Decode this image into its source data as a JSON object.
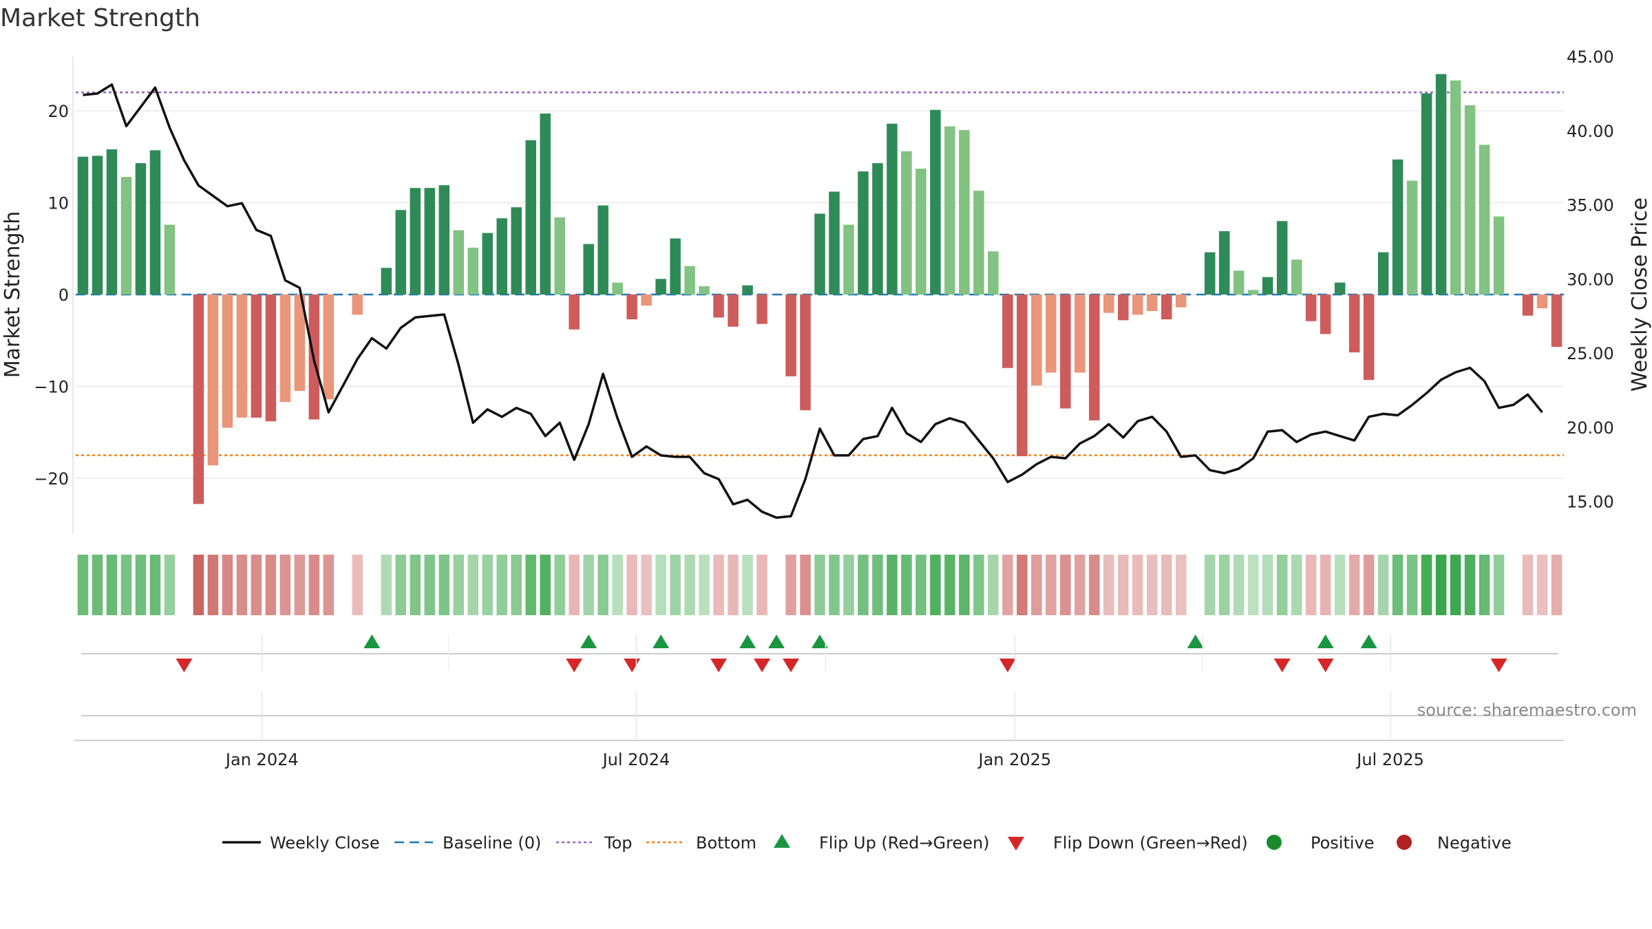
{
  "chart_data": {
    "type": "bar",
    "title": "Market Strength",
    "source": "source: sharemaestro.com",
    "y_left_label": "Market Strength",
    "y_right_label": "Weekly Close Price",
    "y_left_range": [
      -26,
      26
    ],
    "y_right_range": [
      12.5,
      45.5
    ],
    "y_left_ticks": [
      20,
      10,
      0,
      -10,
      -20
    ],
    "y_left_tick_labels": [
      "20",
      "10",
      "0",
      "−10",
      "−20"
    ],
    "y_right_ticks": [
      45,
      40,
      35,
      30,
      25,
      20,
      15
    ],
    "y_right_tick_labels": [
      "45.00",
      "40.00",
      "35.00",
      "30.00",
      "25.00",
      "20.00",
      "15.00"
    ],
    "x_ticks": [
      {
        "label": "Jan 2024",
        "index": 12.4
      },
      {
        "label": "Jul 2024",
        "index": 38.3
      },
      {
        "label": "Jan 2025",
        "index": 64.5
      },
      {
        "label": "Jul 2025",
        "index": 90.5
      }
    ],
    "reference_lines": {
      "top": 22,
      "bottom": -17.5,
      "baseline": 0
    },
    "strength": [
      15,
      15.1,
      15.8,
      12.8,
      14.3,
      15.7,
      7.6,
      0,
      -22.8,
      -18.6,
      -14.5,
      -13.4,
      -13.4,
      -13.8,
      -11.7,
      -10.5,
      -13.6,
      -11.4,
      0,
      -2.2,
      0,
      2.9,
      9.2,
      11.6,
      11.6,
      11.9,
      7,
      5.1,
      6.7,
      8.3,
      9.5,
      16.8,
      19.7,
      8.4,
      -3.8,
      5.5,
      9.7,
      1.3,
      -2.7,
      -1.2,
      1.7,
      6.1,
      3.1,
      0.9,
      -2.5,
      -3.5,
      1,
      -3.2,
      0,
      -8.9,
      -12.6,
      8.8,
      11.2,
      7.6,
      13.4,
      14.3,
      18.6,
      15.6,
      13.7,
      20.1,
      18.3,
      17.9,
      11.3,
      4.7,
      -8,
      -17.6,
      -9.9,
      -8.5,
      -12.4,
      -8.5,
      -13.7,
      -2,
      -2.8,
      -2.2,
      -1.8,
      -2.7,
      -1.4,
      0,
      4.6,
      6.9,
      2.6,
      0.5,
      1.9,
      8,
      3.8,
      -2.9,
      -4.3,
      1.3,
      -6.3,
      -9.3,
      4.6,
      14.7,
      12.4,
      21.9,
      24,
      23.3,
      20.6,
      16.3,
      8.5,
      0,
      -2.3,
      -1.5,
      -5.7
    ],
    "bar_shade": [
      "dark",
      "dark",
      "dark",
      "light",
      "dark",
      "dark",
      "light",
      "",
      "dark",
      "light",
      "light",
      "light",
      "dark",
      "dark",
      "light",
      "light",
      "dark",
      "light",
      "",
      "light",
      "",
      "dark",
      "dark",
      "dark",
      "dark",
      "dark",
      "light",
      "light",
      "dark",
      "dark",
      "dark",
      "dark",
      "dark",
      "light",
      "dark",
      "dark",
      "dark",
      "light",
      "dark",
      "light",
      "dark",
      "dark",
      "light",
      "light",
      "dark",
      "dark",
      "dark",
      "dark",
      "",
      "dark",
      "dark",
      "dark",
      "dark",
      "light",
      "dark",
      "dark",
      "dark",
      "light",
      "light",
      "dark",
      "light",
      "light",
      "light",
      "light",
      "dark",
      "dark",
      "light",
      "light",
      "dark",
      "light",
      "dark",
      "light",
      "dark",
      "light",
      "light",
      "dark",
      "light",
      "",
      "dark",
      "dark",
      "light",
      "light",
      "dark",
      "dark",
      "light",
      "dark",
      "dark",
      "dark",
      "dark",
      "dark",
      "dark",
      "dark",
      "light",
      "dark",
      "dark",
      "light",
      "light",
      "light",
      "light",
      "",
      "dark",
      "light",
      "dark"
    ],
    "close": [
      42.4,
      42.5,
      43.1,
      40.3,
      41.6,
      42.9,
      40.2,
      38,
      36.3,
      35.6,
      34.9,
      35.1,
      33.3,
      32.9,
      29.9,
      29.4,
      24.5,
      21,
      22.8,
      24.6,
      26,
      25.3,
      26.7,
      27.4,
      27.5,
      27.6,
      24.2,
      20.3,
      21.2,
      20.7,
      21.3,
      20.9,
      19.4,
      20.3,
      17.8,
      20.2,
      23.6,
      20.6,
      18,
      18.7,
      18.1,
      18,
      18,
      16.9,
      16.5,
      14.8,
      15.1,
      14.3,
      13.9,
      14,
      16.5,
      19.9,
      18.1,
      18.1,
      19.2,
      19.4,
      21.3,
      19.6,
      19,
      20.2,
      20.6,
      20.3,
      19.1,
      17.9,
      16.3,
      16.8,
      17.5,
      18,
      17.9,
      18.9,
      19.4,
      20.2,
      19.3,
      20.4,
      20.7,
      19.7,
      18,
      18.1,
      17.1,
      16.9,
      17.2,
      17.9,
      19.7,
      19.8,
      19,
      19.5,
      19.7,
      19.4,
      19.1,
      20.7,
      20.9,
      20.8,
      21.5,
      22.3,
      23.2,
      23.7,
      24,
      23.1,
      21.3,
      21.5,
      22.2,
      21
    ],
    "flip_up": [
      20,
      35,
      40,
      46,
      48,
      51,
      77,
      86,
      89
    ],
    "flip_down": [
      7,
      34,
      38,
      44,
      47,
      49,
      64,
      83,
      86,
      98
    ],
    "colors": {
      "pos_dark": "#2e8b57",
      "pos_light": "#82c282",
      "neg_dark": "#cd5c5c",
      "neg_light": "#e9967a",
      "close_line": "#111111",
      "baseline": "#1f77b4",
      "top": "#9467bd",
      "bottom": "#ff7f0e",
      "flip_up": "#1a9641",
      "flip_down": "#d62728",
      "positive": "#1a8a2a",
      "negative": "#b22222"
    },
    "legend": [
      {
        "label": "Weekly Close",
        "kind": "line"
      },
      {
        "label": "Baseline (0)",
        "kind": "dash"
      },
      {
        "label": "Top",
        "kind": "dot-top"
      },
      {
        "label": "Bottom",
        "kind": "dot-bottom"
      },
      {
        "label": "Flip Up (Red→Green)",
        "kind": "tri-up"
      },
      {
        "label": "Flip Down (Green→Red)",
        "kind": "tri-down"
      },
      {
        "label": "Positive",
        "kind": "circle-pos"
      },
      {
        "label": "Negative",
        "kind": "circle-neg"
      }
    ],
    "legend_placement": "bottom",
    "grid": true
  }
}
